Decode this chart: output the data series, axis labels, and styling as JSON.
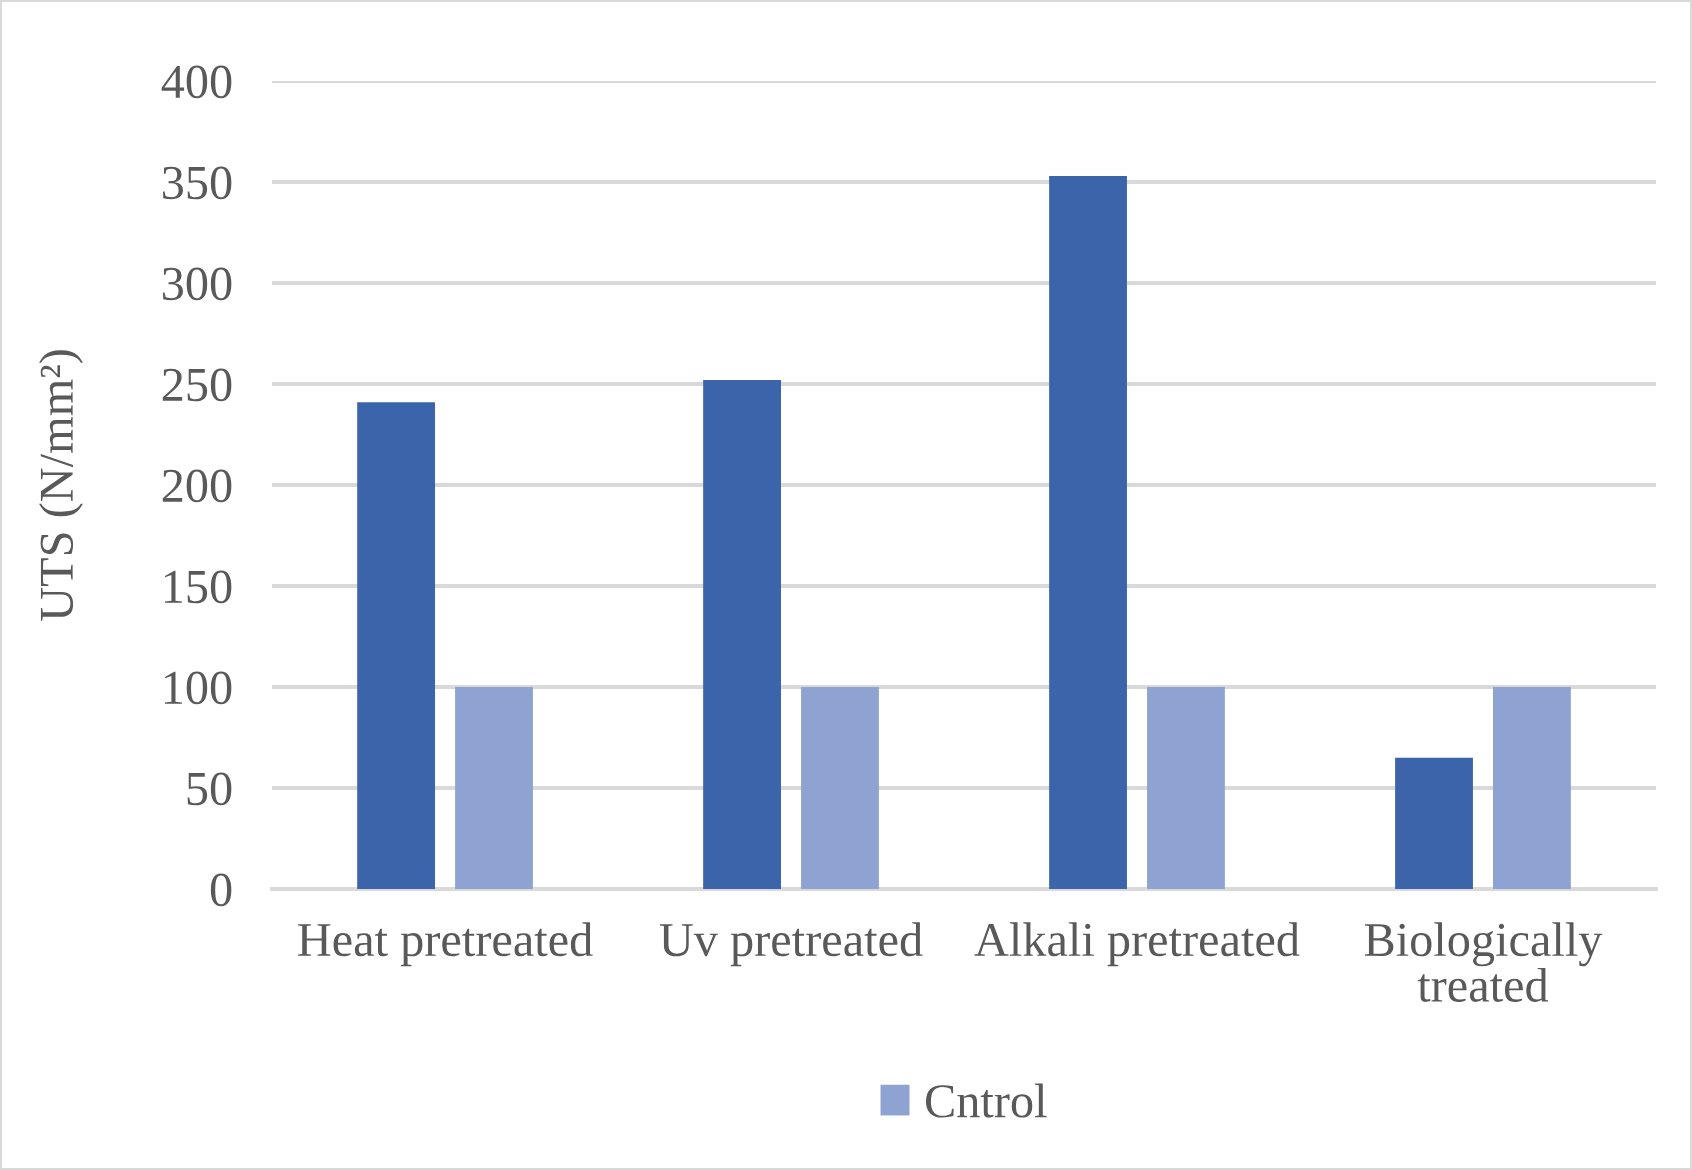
{
  "chart_data": {
    "type": "bar",
    "ylabel": "UTS (N/mm²)",
    "categories": [
      "Heat pretreated",
      "Uv pretreated",
      "Alkali pretreated",
      "Biologically treated"
    ],
    "series": [
      {
        "color": "#3c64ab",
        "values": [
          241,
          252,
          353,
          65
        ]
      },
      {
        "name": "Cntrol",
        "color": "#8fa3d3",
        "values": [
          100,
          100,
          100,
          100
        ]
      }
    ],
    "ylim": [
      0,
      400
    ],
    "yticks": [
      0,
      50,
      100,
      150,
      200,
      250,
      300,
      350,
      400
    ],
    "grid": "y",
    "legend": "bottom"
  }
}
